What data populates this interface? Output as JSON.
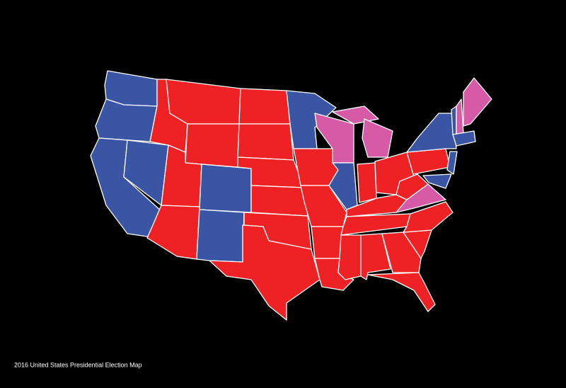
{
  "caption": "2016 United States Presidential Election Map"
}
